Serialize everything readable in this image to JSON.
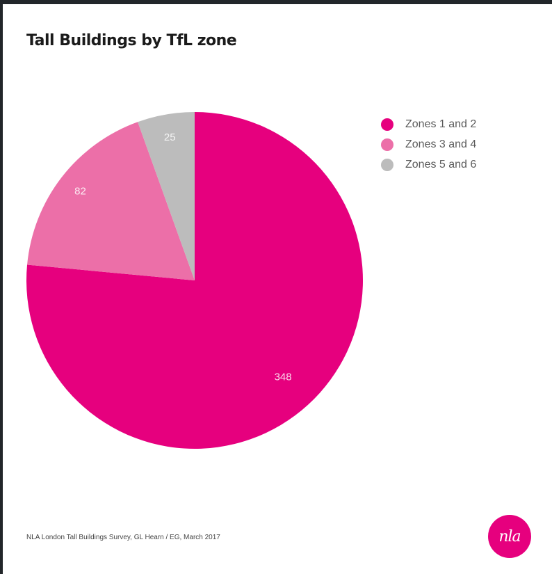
{
  "chart_data": {
    "type": "pie",
    "title": "Tall Buildings by TfL zone",
    "categories": [
      "Zones 1 and 2",
      "Zones 3 and 4",
      "Zones 5 and 6"
    ],
    "values": [
      348,
      82,
      25
    ],
    "colors": [
      "#e6007e",
      "#ec6fa8",
      "#bcbcbc"
    ],
    "legend_position": "top-right",
    "source": "NLA London Tall Buildings Survey, GL Hearn / EG, March 2017"
  },
  "logo": {
    "text": "nla",
    "color": "#e6007e"
  }
}
